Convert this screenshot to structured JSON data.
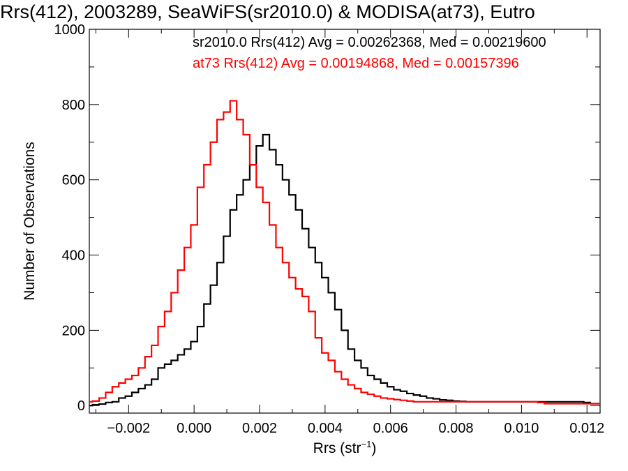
{
  "chart_data": {
    "type": "line",
    "step": true,
    "title": "Rrs(412), 2003289, SeaWiFS(sr2010.0) & MODISA(at73), Eutro",
    "xlabel": "Rrs (str",
    "xlabel_sup": "−1",
    "xlabel_end": ")",
    "ylabel": "Number of Observations",
    "xlim": [
      -0.0032,
      0.0124
    ],
    "ylim": [
      -20,
      1000
    ],
    "xticks": [
      -0.002,
      0.0,
      0.002,
      0.004,
      0.006,
      0.008,
      0.01,
      0.012
    ],
    "xtick_labels": [
      "−0.002",
      "0.000",
      "0.002",
      "0.004",
      "0.006",
      "0.008",
      "0.010",
      "0.012"
    ],
    "yticks": [
      0,
      200,
      400,
      600,
      800,
      1000
    ],
    "ytick_labels": [
      "0",
      "200",
      "400",
      "600",
      "800",
      "1000"
    ],
    "grid": false,
    "legend_placement": "top-right",
    "series": [
      {
        "name": "sr2010.0",
        "color": "#000000",
        "annotation": "sr2010.0 Rrs(412) Avg = 0.00262368, Med = 0.00219600",
        "x": [
          -0.0032,
          -0.003,
          -0.0028,
          -0.0026,
          -0.0024,
          -0.0022,
          -0.002,
          -0.0018,
          -0.0016,
          -0.0014,
          -0.0012,
          -0.001,
          -0.0008,
          -0.0006,
          -0.0004,
          -0.0002,
          0.0,
          0.0002,
          0.0004,
          0.0006,
          0.0008,
          0.001,
          0.0012,
          0.0014,
          0.0016,
          0.0018,
          0.002,
          0.0022,
          0.0024,
          0.0026,
          0.0028,
          0.003,
          0.0032,
          0.0034,
          0.0036,
          0.0038,
          0.004,
          0.0042,
          0.0044,
          0.0046,
          0.0048,
          0.005,
          0.0052,
          0.0054,
          0.0056,
          0.0058,
          0.006,
          0.0062,
          0.0064,
          0.0066,
          0.0068,
          0.007,
          0.0072,
          0.0074,
          0.0076,
          0.0078,
          0.008,
          0.0082,
          0.0084,
          0.0086,
          0.0088,
          0.009,
          0.0092,
          0.0094,
          0.0096,
          0.0098,
          0.01,
          0.0102,
          0.0104,
          0.0106,
          0.0108,
          0.011,
          0.0112,
          0.0114,
          0.0116,
          0.0118,
          0.012,
          0.0122,
          0.0124
        ],
        "y": [
          0,
          2,
          4,
          8,
          10,
          20,
          25,
          35,
          45,
          55,
          70,
          100,
          110,
          120,
          135,
          150,
          170,
          210,
          270,
          320,
          380,
          450,
          520,
          560,
          600,
          640,
          690,
          720,
          680,
          640,
          600,
          560,
          520,
          470,
          420,
          380,
          340,
          300,
          255,
          200,
          150,
          120,
          100,
          80,
          70,
          60,
          50,
          42,
          38,
          32,
          28,
          25,
          20,
          18,
          15,
          14,
          12,
          11,
          10,
          10,
          10,
          10,
          10,
          10,
          10,
          10,
          10,
          10,
          10,
          10,
          10,
          10,
          10,
          10,
          10,
          10,
          8,
          5,
          5
        ]
      },
      {
        "name": "at73",
        "color": "#ff0000",
        "annotation": "at73 Rrs(412) Avg = 0.00194868, Med = 0.00157396",
        "x": [
          -0.0032,
          -0.003,
          -0.0028,
          -0.0026,
          -0.0024,
          -0.0022,
          -0.002,
          -0.0018,
          -0.0016,
          -0.0014,
          -0.0012,
          -0.001,
          -0.0008,
          -0.0006,
          -0.0004,
          -0.0002,
          0.0,
          0.0002,
          0.0004,
          0.0006,
          0.0008,
          0.001,
          0.0012,
          0.0014,
          0.0016,
          0.0018,
          0.002,
          0.0022,
          0.0024,
          0.0026,
          0.0028,
          0.003,
          0.0032,
          0.0034,
          0.0036,
          0.0038,
          0.004,
          0.0042,
          0.0044,
          0.0046,
          0.0048,
          0.005,
          0.0052,
          0.0054,
          0.0056,
          0.0058,
          0.006,
          0.0062,
          0.0064,
          0.0066,
          0.0068,
          0.007,
          0.0072,
          0.0074,
          0.0076,
          0.0078,
          0.008,
          0.0082,
          0.0084,
          0.0086,
          0.0088,
          0.009,
          0.0092,
          0.0094,
          0.0096,
          0.0098,
          0.01,
          0.0102,
          0.0104,
          0.0106,
          0.0108,
          0.011,
          0.0112,
          0.0114,
          0.0116,
          0.0118,
          0.012,
          0.0122,
          0.0124
        ],
        "y": [
          10,
          12,
          20,
          35,
          50,
          60,
          70,
          80,
          100,
          130,
          160,
          210,
          250,
          300,
          360,
          420,
          480,
          580,
          640,
          700,
          760,
          780,
          810,
          760,
          720,
          640,
          580,
          540,
          480,
          420,
          380,
          340,
          310,
          290,
          250,
          180,
          140,
          120,
          90,
          70,
          55,
          45,
          35,
          30,
          25,
          20,
          18,
          16,
          14,
          12,
          10,
          10,
          10,
          10,
          10,
          10,
          10,
          10,
          10,
          10,
          10,
          10,
          10,
          10,
          10,
          10,
          10,
          10,
          10,
          8,
          5,
          5,
          5,
          5,
          5,
          5,
          5,
          5,
          5
        ]
      }
    ]
  }
}
